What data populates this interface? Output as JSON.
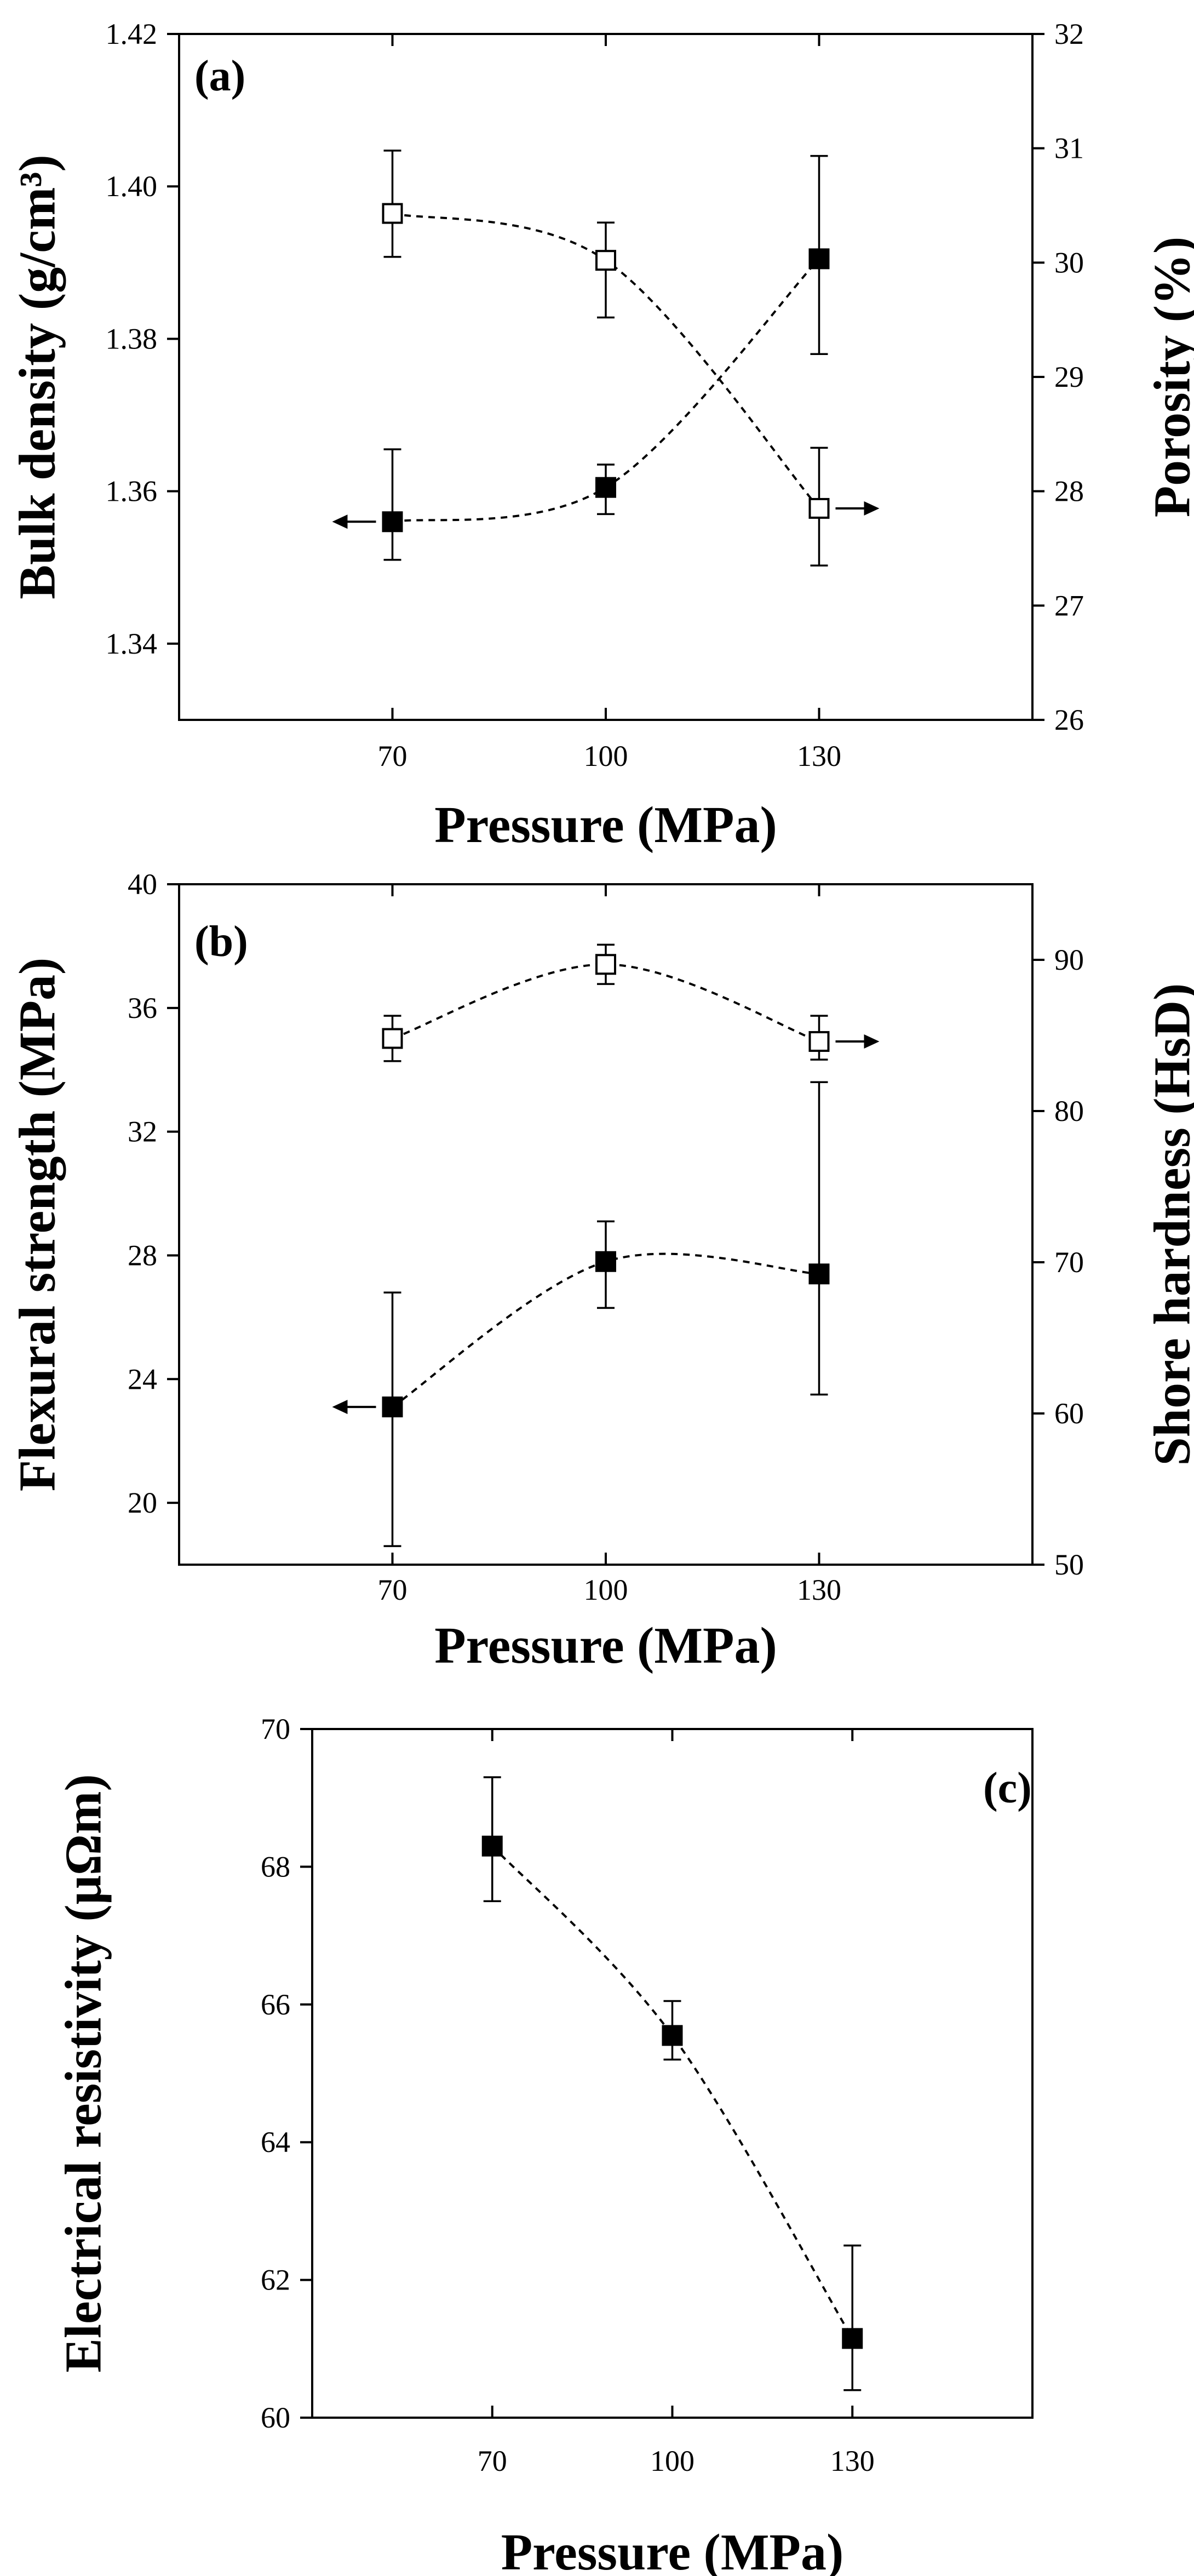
{
  "chart_data": [
    {
      "type": "scatter",
      "panel_label": "(a)",
      "xlabel": "Pressure (MPa)",
      "xlim": [
        40,
        160
      ],
      "x_ticks": [
        70,
        100,
        130
      ],
      "x_tick_labels": [
        "70",
        "100",
        "130"
      ],
      "ylabel_left": "Bulk density (g/cm³)",
      "ylim_left": [
        1.33,
        1.42
      ],
      "y_ticks_left": [
        1.34,
        1.36,
        1.38,
        1.4,
        1.42
      ],
      "y_tick_labels_left": [
        "1.34",
        "1.36",
        "1.38",
        "1.40",
        "1.42"
      ],
      "ylabel_right": "Porosity (%)",
      "ylim_right": [
        26,
        32
      ],
      "y_ticks_right": [
        26,
        27,
        28,
        29,
        30,
        31,
        32
      ],
      "y_tick_labels_right": [
        "26",
        "27",
        "28",
        "29",
        "30",
        "31",
        "32"
      ],
      "series": [
        {
          "name": "Bulk density",
          "axis": "left",
          "marker": "filled-square",
          "arrow": "left",
          "x": [
            70,
            100,
            130
          ],
          "values": [
            1.356,
            1.3605,
            1.3905
          ],
          "err_low": [
            1.351,
            1.357,
            1.378
          ],
          "err_high": [
            1.3655,
            1.3635,
            1.404
          ]
        },
        {
          "name": "Porosity",
          "axis": "right",
          "marker": "open-square",
          "arrow": "right",
          "x": [
            70,
            100,
            130
          ],
          "values": [
            30.43,
            30.02,
            27.85
          ],
          "err_low": [
            30.05,
            29.52,
            27.35
          ],
          "err_high": [
            30.98,
            30.35,
            28.38
          ]
        }
      ]
    },
    {
      "type": "scatter",
      "panel_label": "(b)",
      "xlabel": "Pressure (MPa)",
      "xlim": [
        40,
        160
      ],
      "x_ticks": [
        70,
        100,
        130
      ],
      "x_tick_labels": [
        "70",
        "100",
        "130"
      ],
      "ylabel_left": "Flexural strength (MPa)",
      "ylim_left": [
        18,
        40
      ],
      "y_ticks_left": [
        20,
        24,
        28,
        32,
        36,
        40
      ],
      "y_tick_labels_left": [
        "20",
        "24",
        "28",
        "32",
        "36",
        "40"
      ],
      "ylabel_right": "Shore hardness (HsD)",
      "ylim_right": [
        50,
        95
      ],
      "y_ticks_right": [
        50,
        60,
        70,
        80,
        90
      ],
      "y_tick_labels_right": [
        "50",
        "60",
        "70",
        "80",
        "90"
      ],
      "series": [
        {
          "name": "Flexural strength",
          "axis": "left",
          "marker": "filled-square",
          "arrow": "left",
          "x": [
            70,
            100,
            130
          ],
          "values": [
            23.1,
            27.8,
            27.4
          ],
          "err_low": [
            18.6,
            26.3,
            23.5
          ],
          "err_high": [
            26.8,
            29.1,
            33.6
          ]
        },
        {
          "name": "Shore hardness",
          "axis": "right",
          "marker": "open-square",
          "arrow": "right",
          "x": [
            70,
            100,
            130
          ],
          "values": [
            84.8,
            89.7,
            84.6
          ],
          "err_low": [
            83.3,
            88.4,
            83.4
          ],
          "err_high": [
            86.3,
            91.0,
            86.3
          ]
        }
      ]
    },
    {
      "type": "scatter",
      "panel_label": "(c)",
      "xlabel": "Pressure (MPa)",
      "xlim": [
        40,
        160
      ],
      "x_ticks": [
        70,
        100,
        130
      ],
      "x_tick_labels": [
        "70",
        "100",
        "130"
      ],
      "ylabel_left": "Electrical resistivity (μΩm)",
      "ylim_left": [
        60,
        70
      ],
      "y_ticks_left": [
        60,
        62,
        64,
        66,
        68,
        70
      ],
      "y_tick_labels_left": [
        "60",
        "62",
        "64",
        "66",
        "68",
        "70"
      ],
      "series": [
        {
          "name": "Electrical resistivity",
          "axis": "left",
          "marker": "filled-square",
          "x": [
            70,
            100,
            130
          ],
          "values": [
            68.3,
            65.55,
            61.15
          ],
          "err_low": [
            67.5,
            65.2,
            60.4
          ],
          "err_high": [
            69.3,
            66.05,
            62.5
          ]
        }
      ]
    }
  ]
}
